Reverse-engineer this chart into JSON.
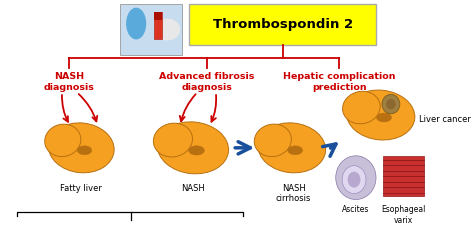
{
  "title": "Thrombospondin 2",
  "title_bg": "#FFFF00",
  "title_fontsize": 9.5,
  "bg_color": "#FFFFFF",
  "red_color": "#CC0000",
  "blue_color": "#1A4F9C",
  "orange_color": "#F5A020",
  "dark_orange": "#B87010",
  "labels": {
    "nash_diag": "NASH\ndiagnosis",
    "adv_diag": "Advanced fibrosis\ndiagnosis",
    "hepatic": "Hepatic complication\nprediction",
    "fatty_liver": "Fatty liver",
    "nash": "NASH",
    "nash_cirrhosis": "NASH\ncirrhosis",
    "liver_cancer": "Liver cancer",
    "ascites": "Ascites",
    "esophageal": "Esophageal\nvarix"
  }
}
